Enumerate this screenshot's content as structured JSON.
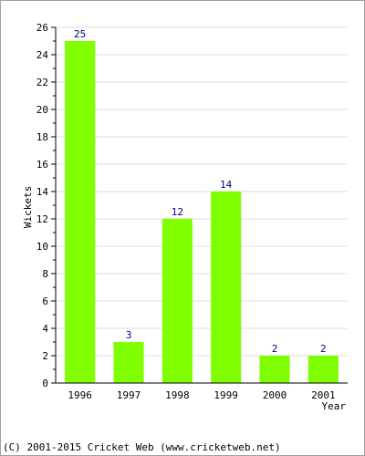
{
  "chart_data": {
    "type": "bar",
    "categories": [
      "1996",
      "1997",
      "1998",
      "1999",
      "2000",
      "2001"
    ],
    "values": [
      25,
      3,
      12,
      14,
      2,
      2
    ],
    "title": "",
    "xlabel": "Year",
    "ylabel": "Wickets",
    "ylim": [
      0,
      26
    ],
    "yticks": [
      0,
      2,
      4,
      6,
      8,
      10,
      12,
      14,
      16,
      18,
      20,
      22,
      24,
      26
    ],
    "grid": true,
    "bar_color": "#80ff00",
    "label_color": "#000080"
  },
  "footer": "(C) 2001-2015 Cricket Web (www.cricketweb.net)"
}
